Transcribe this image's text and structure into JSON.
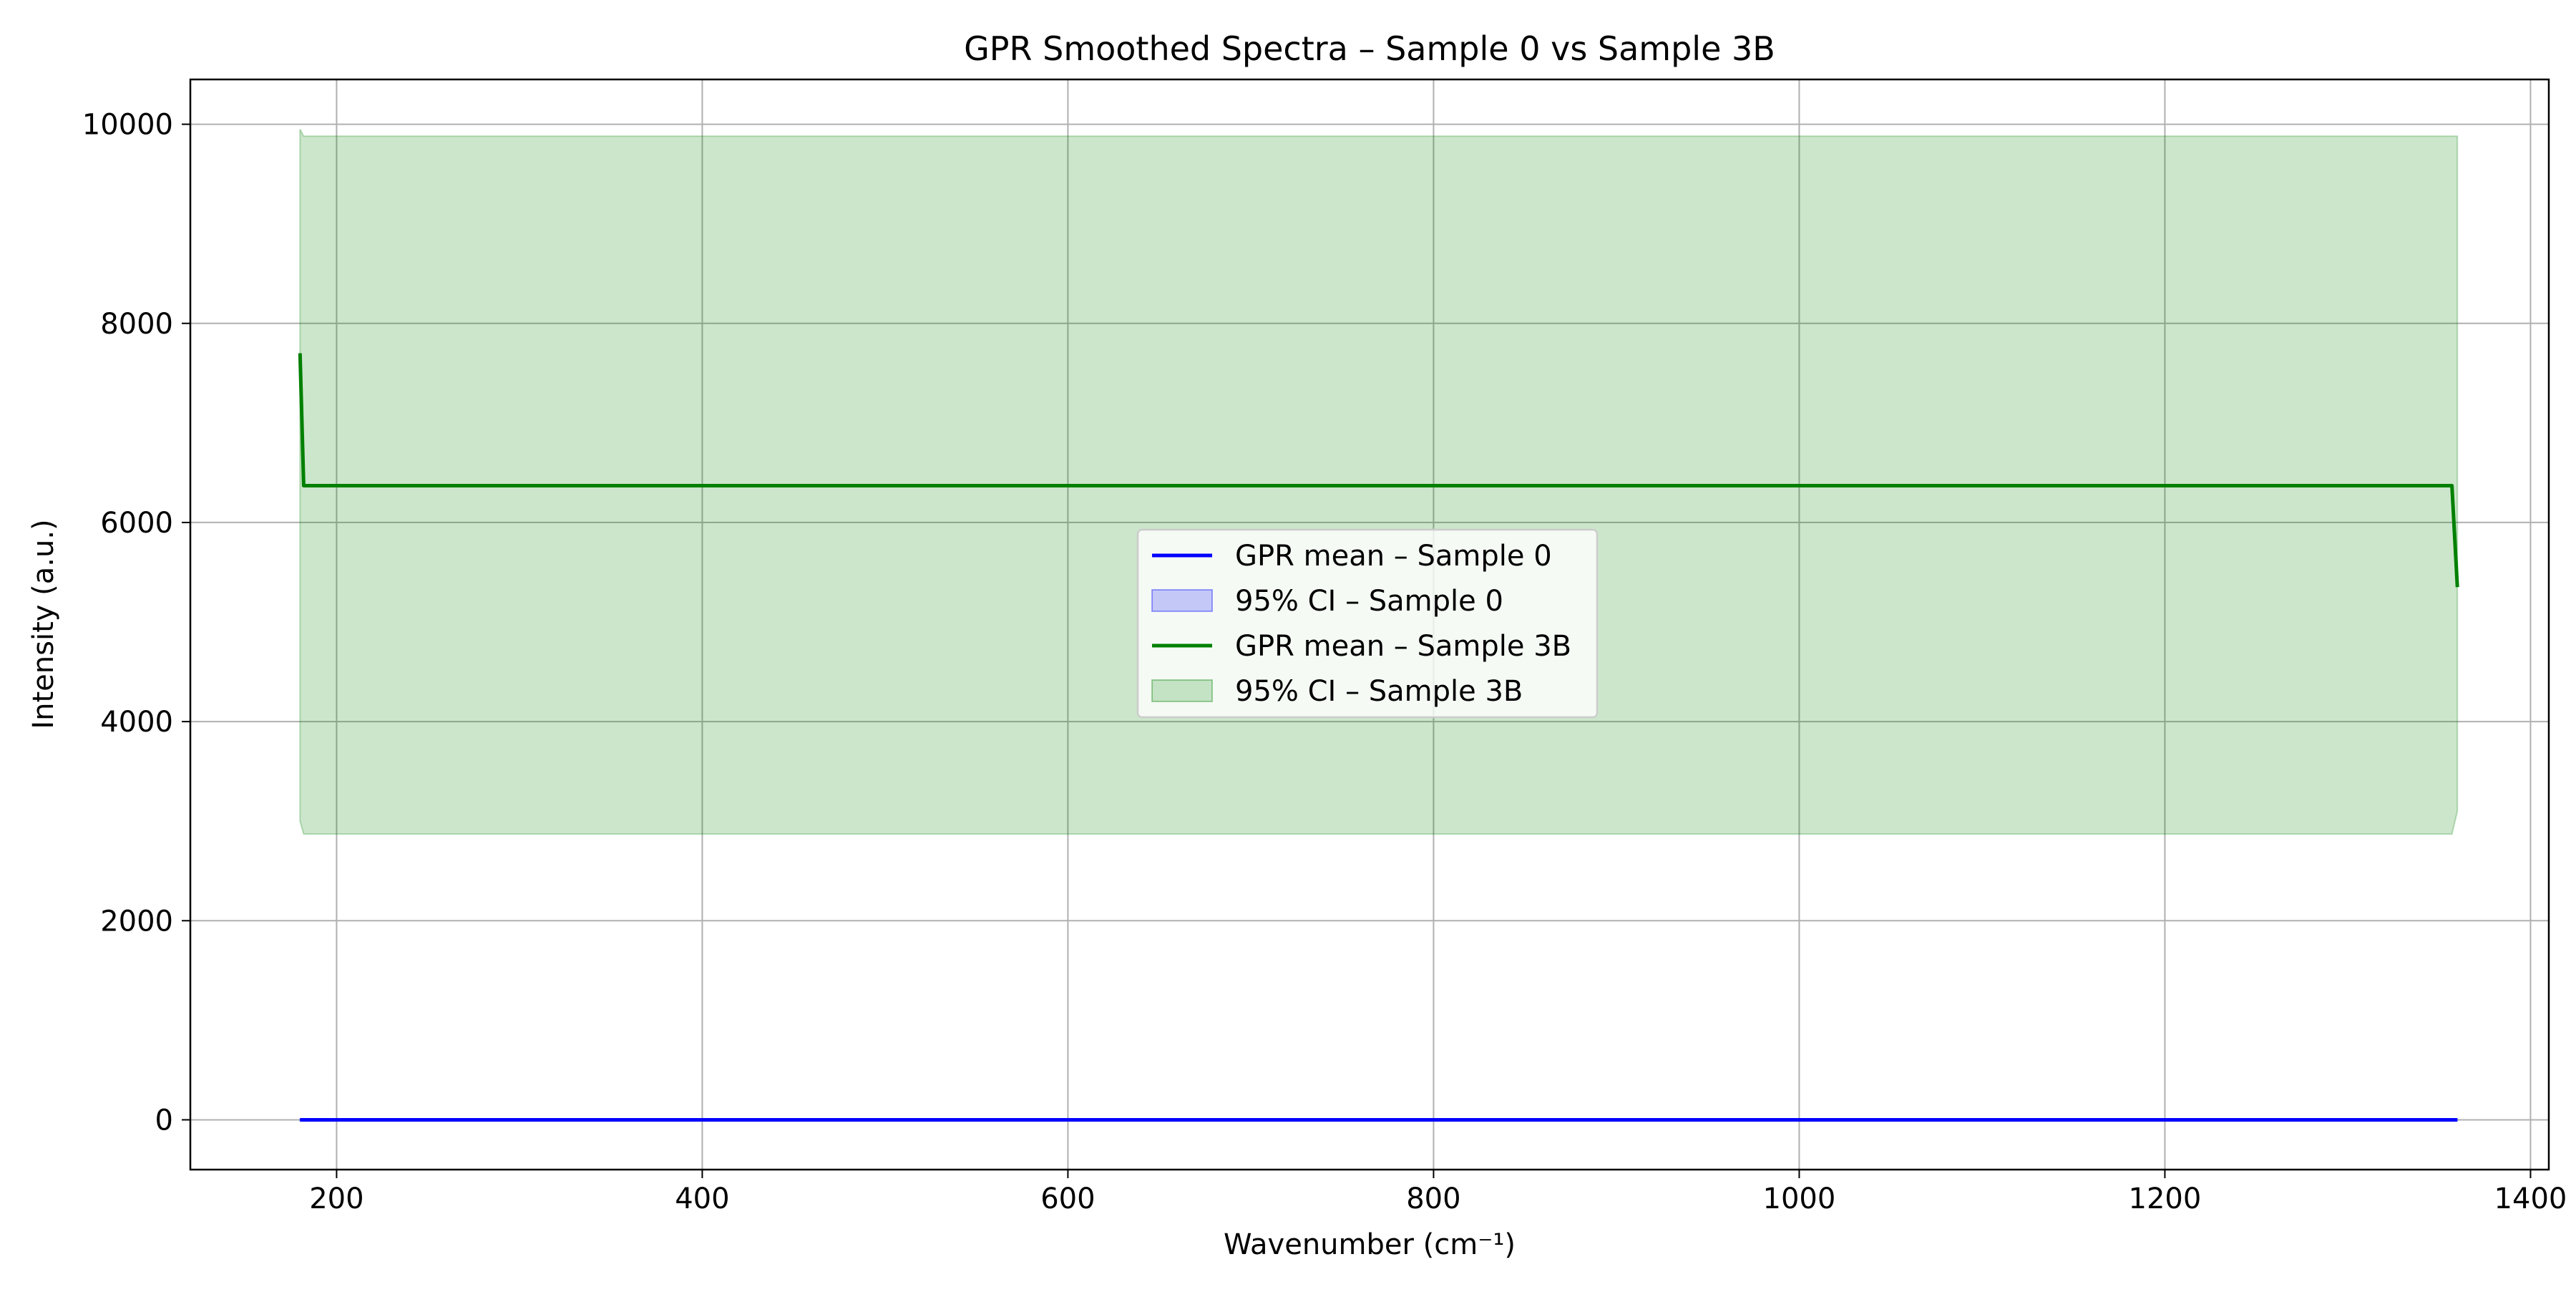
{
  "chart_data": {
    "type": "line",
    "title": "GPR Smoothed Spectra – Sample 0 vs Sample 3B",
    "xlabel": "Wavenumber (cm⁻¹)",
    "ylabel": "Intensity (a.u.)",
    "xlim": [
      120,
      1410
    ],
    "ylim": [
      -500,
      10450
    ],
    "xticks": [
      200,
      400,
      600,
      800,
      1000,
      1200,
      1400
    ],
    "yticks": [
      0,
      2000,
      4000,
      6000,
      8000,
      10000
    ],
    "grid": true,
    "legend_position": "center",
    "series": [
      {
        "name": "GPR mean – Sample 0",
        "kind": "line",
        "color": "#0000ff",
        "x": [
          180,
          1360
        ],
        "y": [
          0,
          0
        ]
      },
      {
        "name": "95% CI – Sample 0",
        "kind": "band",
        "color": "#0000ff",
        "x": [
          180,
          1360
        ],
        "lower": [
          -10,
          -10
        ],
        "upper": [
          10,
          10
        ]
      },
      {
        "name": "GPR mean – Sample 3B",
        "kind": "line",
        "color": "#008000",
        "x": [
          180,
          182,
          1357,
          1360
        ],
        "y": [
          7700,
          6370,
          6370,
          5350
        ]
      },
      {
        "name": "95% CI – Sample 3B",
        "kind": "band",
        "color": "#008000",
        "x": [
          180,
          182,
          1357,
          1360
        ],
        "lower": [
          3000,
          2870,
          2870,
          3100
        ],
        "upper": [
          9950,
          9880,
          9880,
          9880
        ]
      }
    ]
  }
}
